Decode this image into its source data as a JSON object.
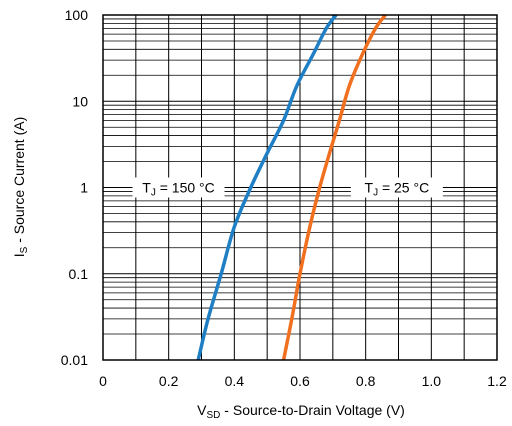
{
  "chart_data": {
    "type": "line",
    "x_scale": "linear",
    "y_scale": "log",
    "xlim": [
      0,
      1.2
    ],
    "ylim": [
      0.01,
      100
    ],
    "x_ticks": [
      "0",
      "0.2",
      "0.4",
      "0.6",
      "0.8",
      "1.0",
      "1.2"
    ],
    "x_tick_values": [
      0,
      0.2,
      0.4,
      0.6,
      0.8,
      1.0,
      1.2
    ],
    "y_ticks": [
      "0.01",
      "0.1",
      "1",
      "10",
      "100"
    ],
    "y_tick_values": [
      0.01,
      0.1,
      1,
      10,
      100
    ],
    "grid": true,
    "xlabel": {
      "main": "V",
      "sub": "SD",
      "rest": " - Source-to-Drain Voltage (V)"
    },
    "ylabel": {
      "main": "I",
      "sub": "S",
      "rest": " - Source Current (A)"
    },
    "series": [
      {
        "name": "T_J = 150 °C",
        "label": {
          "pre": "T",
          "sub": "J",
          "post": " = 150 °C"
        },
        "color": "#1f7fc4",
        "x": [
          0.29,
          0.32,
          0.36,
          0.4,
          0.45,
          0.5,
          0.55,
          0.59,
          0.64,
          0.68,
          0.71
        ],
        "y": [
          0.01,
          0.03,
          0.1,
          0.35,
          1.0,
          2.5,
          6.0,
          15,
          35,
          70,
          100
        ]
      },
      {
        "name": "T_J = 25 °C",
        "label": {
          "pre": "T",
          "sub": "J",
          "post": " = 25 °C"
        },
        "color": "#f07020",
        "x": [
          0.55,
          0.575,
          0.6,
          0.63,
          0.66,
          0.69,
          0.72,
          0.75,
          0.79,
          0.83,
          0.86
        ],
        "y": [
          0.01,
          0.03,
          0.1,
          0.35,
          1.0,
          2.5,
          6.0,
          15,
          35,
          70,
          100
        ]
      }
    ]
  }
}
